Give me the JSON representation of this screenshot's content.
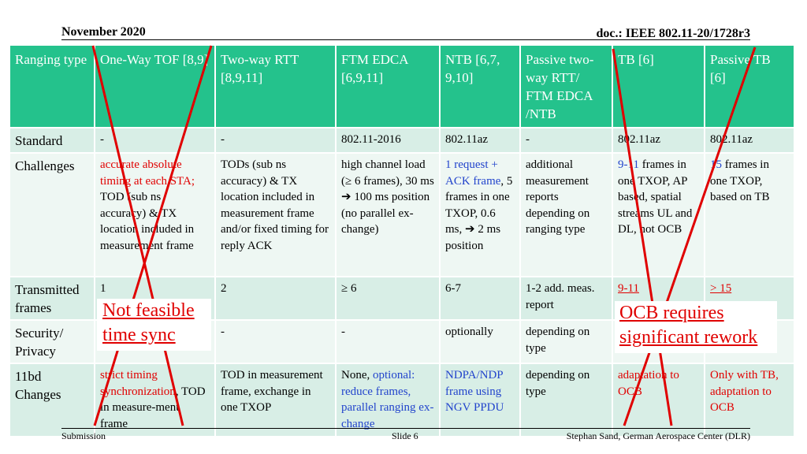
{
  "header": {
    "date": "November 2020",
    "doc": "doc.: IEEE 802.11-20/1728r3"
  },
  "columns": [
    "Ranging type",
    "One-Way TOF [8,9]",
    "Two-way RTT [8,9,11]",
    "FTM EDCA [6,9,11]",
    "NTB [6,7, 9,10]",
    "Passive two-way RTT/ FTM EDCA /NTB",
    "TB [6]",
    "Passive TB [6]"
  ],
  "rows": {
    "standard": {
      "label": "Standard",
      "c1": "-",
      "c2": "-",
      "c3": "802.11-2016",
      "c4": "802.11az",
      "c5": "-",
      "c6": "802.11az",
      "c7": "802.11az"
    },
    "challenges": {
      "label": "Challenges",
      "c1a": "accurate absolute timing at each STA;",
      "c1b": " TOD (sub ns accuracy) & TX location included in measurement frame",
      "c2": "TODs (sub ns accuracy) & TX location included in measurement frame and/or fixed timing for reply ACK",
      "c3a": "high channel load (≥ 6 frames), 30 ms ",
      "c3arrow": "➔",
      "c3b": " 100 ms position (no parallel ex-change)",
      "c4a": "1 request + ACK frame",
      "c4b": ", 5 frames in one TXOP, 0.6 ms, ",
      "c4arrow": "➔",
      "c4c": " 2 ms position",
      "c5": "additional measurement reports depending on ranging type",
      "c6a": "9-11",
      "c6b": " frames in one TXOP, AP based, spatial streams UL and DL, not OCB",
      "c7a": "15",
      "c7b": " frames in one TXOP, based on TB"
    },
    "transmitted": {
      "label": "Transmitted frames",
      "c1": "1",
      "c2": "2",
      "c3": "≥ 6",
      "c4": "6-7",
      "c5": "1-2  add. meas. report",
      "c6": "9-11",
      "c7": "> 15"
    },
    "security": {
      "label": "Security/ Privacy",
      "c2": "-",
      "c3": "-",
      "c4": "optionally",
      "c5": "depending on type"
    },
    "changes": {
      "label": "11bd Changes",
      "c1a": "strict timing synchronization",
      "c1b": ", TOD in measure-ment frame",
      "c2": "TOD in measurement frame, exchange in one TXOP",
      "c3a": "None, ",
      "c3b": "optional: reduce frames, parallel ranging ex-change",
      "c4": "NDPA/NDP frame using NGV PPDU",
      "c5": "depending on type",
      "c6": "adaptation to OCB",
      "c7": "Only with TB, adaptation to OCB"
    }
  },
  "annotations": {
    "left_1": "Not feasible",
    "left_2": "time sync",
    "right_1": "OCB requires",
    "right_2": "significant rework"
  },
  "footer": {
    "left": "Submission",
    "middle": "Slide 6",
    "right": "Stephan Sand, German Aerospace Center (DLR)"
  },
  "colors": {
    "header_bg": "#24c28c",
    "row_dark": "#d8eee6",
    "row_light": "#eef7f3",
    "red": "#e00000",
    "blue": "#2244cc"
  }
}
